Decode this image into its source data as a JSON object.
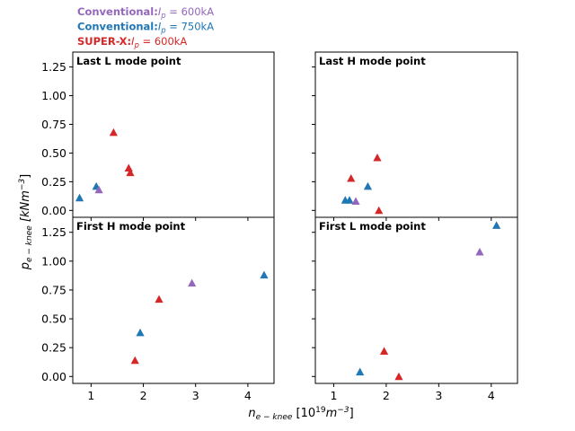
{
  "chart_data": {
    "type": "scatter",
    "legend": [
      {
        "bold": "Conventional:",
        "prefix": "I",
        "sub": "p",
        "rest": " = 600kA",
        "color": "#9467bd"
      },
      {
        "bold": "Conventional:",
        "prefix": "I",
        "sub": "p",
        "rest": " = 750kA",
        "color": "#1f77b4"
      },
      {
        "bold": "SUPER-X:",
        "prefix": "I",
        "sub": "p",
        "rest": " = 600kA",
        "color": "#d62728"
      }
    ],
    "xlabel": {
      "main": "n",
      "sub": "e − knee",
      "unit_open": " [10",
      "unit_sup": "19",
      "unit_mid": "m",
      "unit_sup2": "−3",
      "unit_close": "]"
    },
    "ylabel": {
      "main": "p",
      "sub": "e − knee",
      "unit": " [kNm",
      "unit_sup": "−3",
      "unit_close": "]"
    },
    "xlim": [
      0.65,
      4.5
    ],
    "ylim": [
      -0.06,
      1.38
    ],
    "x_ticks": [
      1,
      2,
      3,
      4
    ],
    "x_tick_labels": [
      "1",
      "2",
      "3",
      "4"
    ],
    "y_ticks": [
      0.0,
      0.25,
      0.5,
      0.75,
      1.0,
      1.25
    ],
    "y_tick_labels": [
      "0.00",
      "0.25",
      "0.50",
      "0.75",
      "1.00",
      "1.25"
    ],
    "panels": [
      {
        "title": "Last L mode point",
        "points": [
          {
            "x": 0.78,
            "y": 0.11,
            "color": "#1f77b4"
          },
          {
            "x": 1.1,
            "y": 0.21,
            "color": "#1f77b4"
          },
          {
            "x": 1.15,
            "y": 0.18,
            "color": "#9467bd"
          },
          {
            "x": 1.43,
            "y": 0.68,
            "color": "#d62728"
          },
          {
            "x": 1.72,
            "y": 0.37,
            "color": "#d62728"
          },
          {
            "x": 1.75,
            "y": 0.33,
            "color": "#d62728"
          }
        ]
      },
      {
        "title": "Last H mode point",
        "points": [
          {
            "x": 1.22,
            "y": 0.09,
            "color": "#1f77b4"
          },
          {
            "x": 1.3,
            "y": 0.09,
            "color": "#1f77b4"
          },
          {
            "x": 1.33,
            "y": 0.28,
            "color": "#d62728"
          },
          {
            "x": 1.42,
            "y": 0.08,
            "color": "#9467bd"
          },
          {
            "x": 1.65,
            "y": 0.21,
            "color": "#1f77b4"
          },
          {
            "x": 1.83,
            "y": 0.46,
            "color": "#d62728"
          },
          {
            "x": 1.86,
            "y": 0.0,
            "color": "#d62728"
          }
        ]
      },
      {
        "title": "First H mode point",
        "points": [
          {
            "x": 1.84,
            "y": 0.14,
            "color": "#d62728"
          },
          {
            "x": 1.94,
            "y": 0.38,
            "color": "#1f77b4"
          },
          {
            "x": 2.3,
            "y": 0.67,
            "color": "#d62728"
          },
          {
            "x": 2.93,
            "y": 0.81,
            "color": "#9467bd"
          },
          {
            "x": 4.31,
            "y": 0.88,
            "color": "#1f77b4"
          }
        ]
      },
      {
        "title": "First L mode point",
        "points": [
          {
            "x": 1.5,
            "y": 0.04,
            "color": "#1f77b4"
          },
          {
            "x": 1.96,
            "y": 0.22,
            "color": "#d62728"
          },
          {
            "x": 2.24,
            "y": 0.0,
            "color": "#d62728"
          },
          {
            "x": 3.78,
            "y": 1.08,
            "color": "#9467bd"
          },
          {
            "x": 4.1,
            "y": 1.31,
            "color": "#1f77b4"
          }
        ]
      }
    ]
  }
}
